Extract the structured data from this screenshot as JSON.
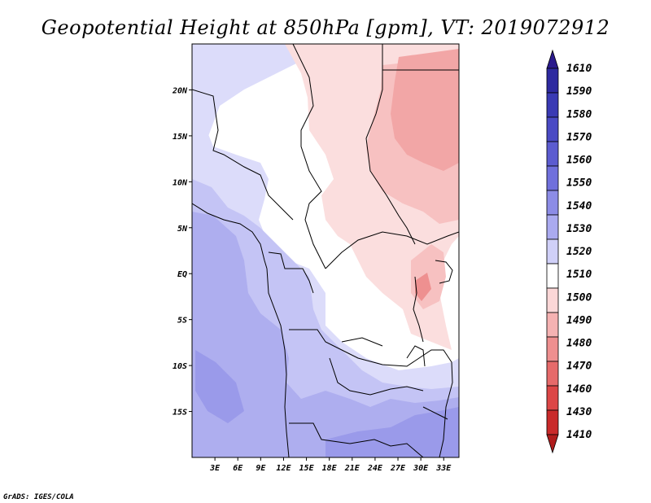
{
  "title": "Geopotential Height at 850hPa [gpm], VT: 2019072912",
  "credit": "GrADS: IGES/COLA",
  "map": {
    "lon_range": [
      0,
      35
    ],
    "lat_range": [
      -20,
      25
    ],
    "x_ticks": [
      "3E",
      "6E",
      "9E",
      "12E",
      "15E",
      "18E",
      "21E",
      "24E",
      "27E",
      "30E",
      "33E"
    ],
    "x_tick_values": [
      3,
      6,
      9,
      12,
      15,
      18,
      21,
      24,
      27,
      30,
      33
    ],
    "y_ticks": [
      "20N",
      "15N",
      "10N",
      "5N",
      "EQ",
      "5S",
      "10S",
      "15S"
    ],
    "y_tick_values": [
      20,
      15,
      10,
      5,
      0,
      -5,
      -10,
      -15
    ]
  },
  "colorbar": {
    "levels": [
      "1610",
      "1590",
      "1580",
      "1570",
      "1560",
      "1550",
      "1540",
      "1530",
      "1520",
      "1510",
      "1500",
      "1490",
      "1480",
      "1470",
      "1460",
      "1430",
      "1410"
    ],
    "colors": [
      "#2a1a8c",
      "#2e2aa0",
      "#3a3ab4",
      "#4a4ac4",
      "#5c5cd0",
      "#7070dc",
      "#8c8ce6",
      "#aaaaf0",
      "#d0d0f8",
      "#ffffff",
      "#fbd7d7",
      "#f5b2b2",
      "#ee8f8f",
      "#e66a6a",
      "#dc4646",
      "#c92a2a",
      "#b01c1c"
    ]
  }
}
